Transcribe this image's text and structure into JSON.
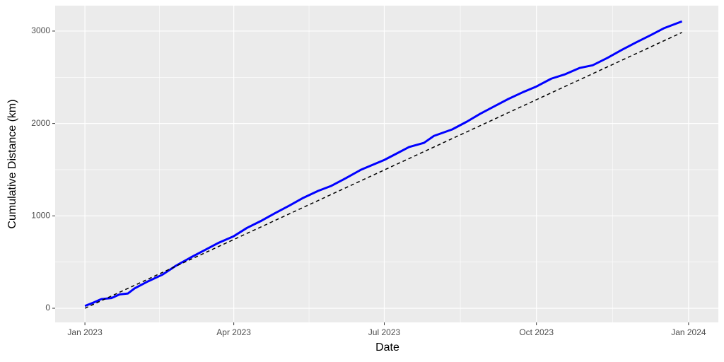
{
  "chart_data": {
    "type": "line",
    "x_label": "Date",
    "y_label": "Cumulative Distance (km)",
    "x": [
      0,
      5,
      10,
      16,
      21,
      26,
      30,
      38,
      47,
      55,
      64,
      73,
      81,
      90,
      98,
      107,
      115,
      124,
      132,
      141,
      149,
      158,
      167,
      175,
      181,
      188,
      196,
      205,
      211,
      222,
      231,
      239,
      248,
      256,
      265,
      273,
      282,
      290,
      299,
      307,
      316,
      325,
      333,
      342,
      350,
      361
    ],
    "series": [
      {
        "color": "#0000ff",
        "width": 3,
        "dashed": false,
        "x": [
          0,
          5,
          10,
          16,
          21,
          26,
          30,
          38,
          47,
          55,
          64,
          73,
          81,
          90,
          98,
          107,
          115,
          124,
          132,
          141,
          149,
          158,
          167,
          175,
          181,
          188,
          196,
          205,
          211,
          222,
          231,
          239,
          248,
          256,
          265,
          273,
          282,
          290,
          299,
          307,
          316,
          325,
          333,
          342,
          350,
          361
        ],
        "values": [
          25,
          60,
          100,
          110,
          150,
          160,
          215,
          290,
          365,
          460,
          550,
          635,
          710,
          780,
          870,
          950,
          1030,
          1115,
          1195,
          1270,
          1325,
          1410,
          1500,
          1560,
          1605,
          1670,
          1745,
          1790,
          1865,
          1935,
          2020,
          2105,
          2190,
          2265,
          2340,
          2400,
          2485,
          2530,
          2600,
          2630,
          2710,
          2800,
          2875,
          2955,
          3030,
          3105
        ]
      },
      {
        "color": "#000000",
        "width": 1.5,
        "dashed": true,
        "x": [
          0,
          361
        ],
        "values": [
          0,
          2985
        ]
      }
    ],
    "xlim": [
      -18,
      383
    ],
    "ylim": [
      -153,
      3275
    ],
    "xticks": [
      {
        "value": 0,
        "label": "Jan 2023"
      },
      {
        "value": 90,
        "label": "Apr 2023"
      },
      {
        "value": 181,
        "label": "Jul 2023"
      },
      {
        "value": 273,
        "label": "Oct 2023"
      },
      {
        "value": 365,
        "label": "Jan 2024"
      }
    ],
    "yticks": [
      0,
      1000,
      2000,
      3000
    ],
    "grid": true
  }
}
